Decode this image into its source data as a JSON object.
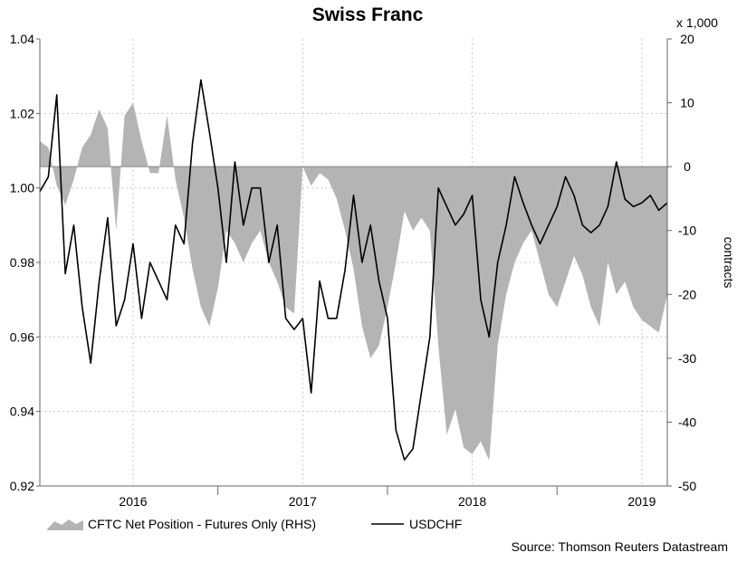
{
  "chart_data": {
    "type": "area+line",
    "title": "Swiss Franc",
    "ylabel_right": "contracts",
    "multiplier_label": "x 1,000",
    "source": "Source: Thomson Reuters Datastream",
    "grid": true,
    "legend_position": "bottom-left",
    "x_range": [
      2015.45,
      2019.15
    ],
    "x_ticks": [
      {
        "label": "2016",
        "x": 2016.0
      },
      {
        "label": "2017",
        "x": 2017.0
      },
      {
        "label": "2018",
        "x": 2018.0
      },
      {
        "label": "2019",
        "x": 2019.0
      }
    ],
    "x_year_boundaries": [
      2016.5,
      2017.5,
      2018.5
    ],
    "y_left": {
      "range": [
        0.92,
        1.04
      ],
      "ticks": [
        "0.92",
        "0.94",
        "0.96",
        "0.98",
        "1.00",
        "1.02",
        "1.04"
      ]
    },
    "y_right": {
      "range": [
        -50,
        20
      ],
      "ticks": [
        "-50",
        "-40",
        "-30",
        "-20",
        "-10",
        "0",
        "10",
        "20"
      ]
    },
    "series": [
      {
        "name": "CFTC Net Position - Futures Only (RHS)",
        "type": "area",
        "axis": "right",
        "color": "#b4b4b4",
        "x": [
          2015.45,
          2015.5,
          2015.55,
          2015.6,
          2015.65,
          2015.7,
          2015.75,
          2015.8,
          2015.85,
          2015.9,
          2015.95,
          2016.0,
          2016.05,
          2016.1,
          2016.15,
          2016.2,
          2016.25,
          2016.3,
          2016.35,
          2016.4,
          2016.45,
          2016.5,
          2016.55,
          2016.6,
          2016.65,
          2016.7,
          2016.75,
          2016.8,
          2016.85,
          2016.9,
          2016.95,
          2017.0,
          2017.05,
          2017.1,
          2017.15,
          2017.2,
          2017.25,
          2017.3,
          2017.35,
          2017.4,
          2017.45,
          2017.5,
          2017.55,
          2017.6,
          2017.65,
          2017.7,
          2017.75,
          2017.8,
          2017.85,
          2017.9,
          2017.95,
          2018.0,
          2018.05,
          2018.1,
          2018.15,
          2018.2,
          2018.25,
          2018.3,
          2018.35,
          2018.4,
          2018.45,
          2018.5,
          2018.55,
          2018.6,
          2018.65,
          2018.7,
          2018.75,
          2018.8,
          2018.85,
          2018.9,
          2018.95,
          2019.0,
          2019.05,
          2019.1,
          2019.15
        ],
        "values": [
          4,
          3,
          -3,
          -6,
          -2,
          3,
          5,
          9,
          6,
          -10,
          8,
          10,
          4,
          -1,
          -1,
          8,
          -2,
          -8,
          -16,
          -22,
          -25,
          -19,
          -10,
          -12,
          -15,
          -12,
          -10,
          -15,
          -18,
          -22,
          -23,
          0,
          -3,
          -1,
          -2,
          -5,
          -10,
          -16,
          -25,
          -30,
          -28,
          -22,
          -15,
          -7,
          -10,
          -8,
          -10,
          -28,
          -42,
          -38,
          -44,
          -45,
          -43,
          -46,
          -28,
          -20,
          -15,
          -12,
          -10,
          -15,
          -20,
          -22,
          -18,
          -14,
          -17,
          -22,
          -25,
          -15,
          -20,
          -18,
          -22,
          -24,
          -25,
          -26,
          -20
        ]
      },
      {
        "name": "USDCHF",
        "type": "line",
        "axis": "left",
        "color": "#000000",
        "x": [
          2015.45,
          2015.5,
          2015.55,
          2015.6,
          2015.65,
          2015.7,
          2015.75,
          2015.8,
          2015.85,
          2015.9,
          2015.95,
          2016.0,
          2016.05,
          2016.1,
          2016.15,
          2016.2,
          2016.25,
          2016.3,
          2016.35,
          2016.4,
          2016.45,
          2016.5,
          2016.55,
          2016.6,
          2016.65,
          2016.7,
          2016.75,
          2016.8,
          2016.85,
          2016.9,
          2016.95,
          2017.0,
          2017.05,
          2017.1,
          2017.15,
          2017.2,
          2017.25,
          2017.3,
          2017.35,
          2017.4,
          2017.45,
          2017.5,
          2017.55,
          2017.6,
          2017.65,
          2017.7,
          2017.75,
          2017.8,
          2017.85,
          2017.9,
          2017.95,
          2018.0,
          2018.05,
          2018.1,
          2018.15,
          2018.2,
          2018.25,
          2018.3,
          2018.35,
          2018.4,
          2018.45,
          2018.5,
          2018.55,
          2018.6,
          2018.65,
          2018.7,
          2018.75,
          2018.8,
          2018.85,
          2018.9,
          2018.95,
          2019.0,
          2019.05,
          2019.1,
          2019.15
        ],
        "values": [
          0.999,
          1.003,
          1.025,
          0.977,
          0.99,
          0.968,
          0.953,
          0.975,
          0.992,
          0.963,
          0.97,
          0.985,
          0.965,
          0.98,
          0.975,
          0.97,
          0.99,
          0.985,
          1.012,
          1.029,
          1.015,
          1.0,
          0.98,
          1.007,
          0.99,
          1.0,
          1.0,
          0.98,
          0.99,
          0.965,
          0.962,
          0.965,
          0.945,
          0.975,
          0.965,
          0.965,
          0.978,
          0.998,
          0.98,
          0.99,
          0.975,
          0.965,
          0.935,
          0.927,
          0.93,
          0.945,
          0.96,
          1.0,
          0.995,
          0.99,
          0.993,
          0.998,
          0.97,
          0.96,
          0.98,
          0.99,
          1.003,
          0.996,
          0.99,
          0.985,
          0.99,
          0.995,
          1.003,
          0.998,
          0.99,
          0.988,
          0.99,
          0.995,
          1.007,
          0.997,
          0.995,
          0.996,
          0.998,
          0.994,
          0.996
        ]
      }
    ]
  }
}
